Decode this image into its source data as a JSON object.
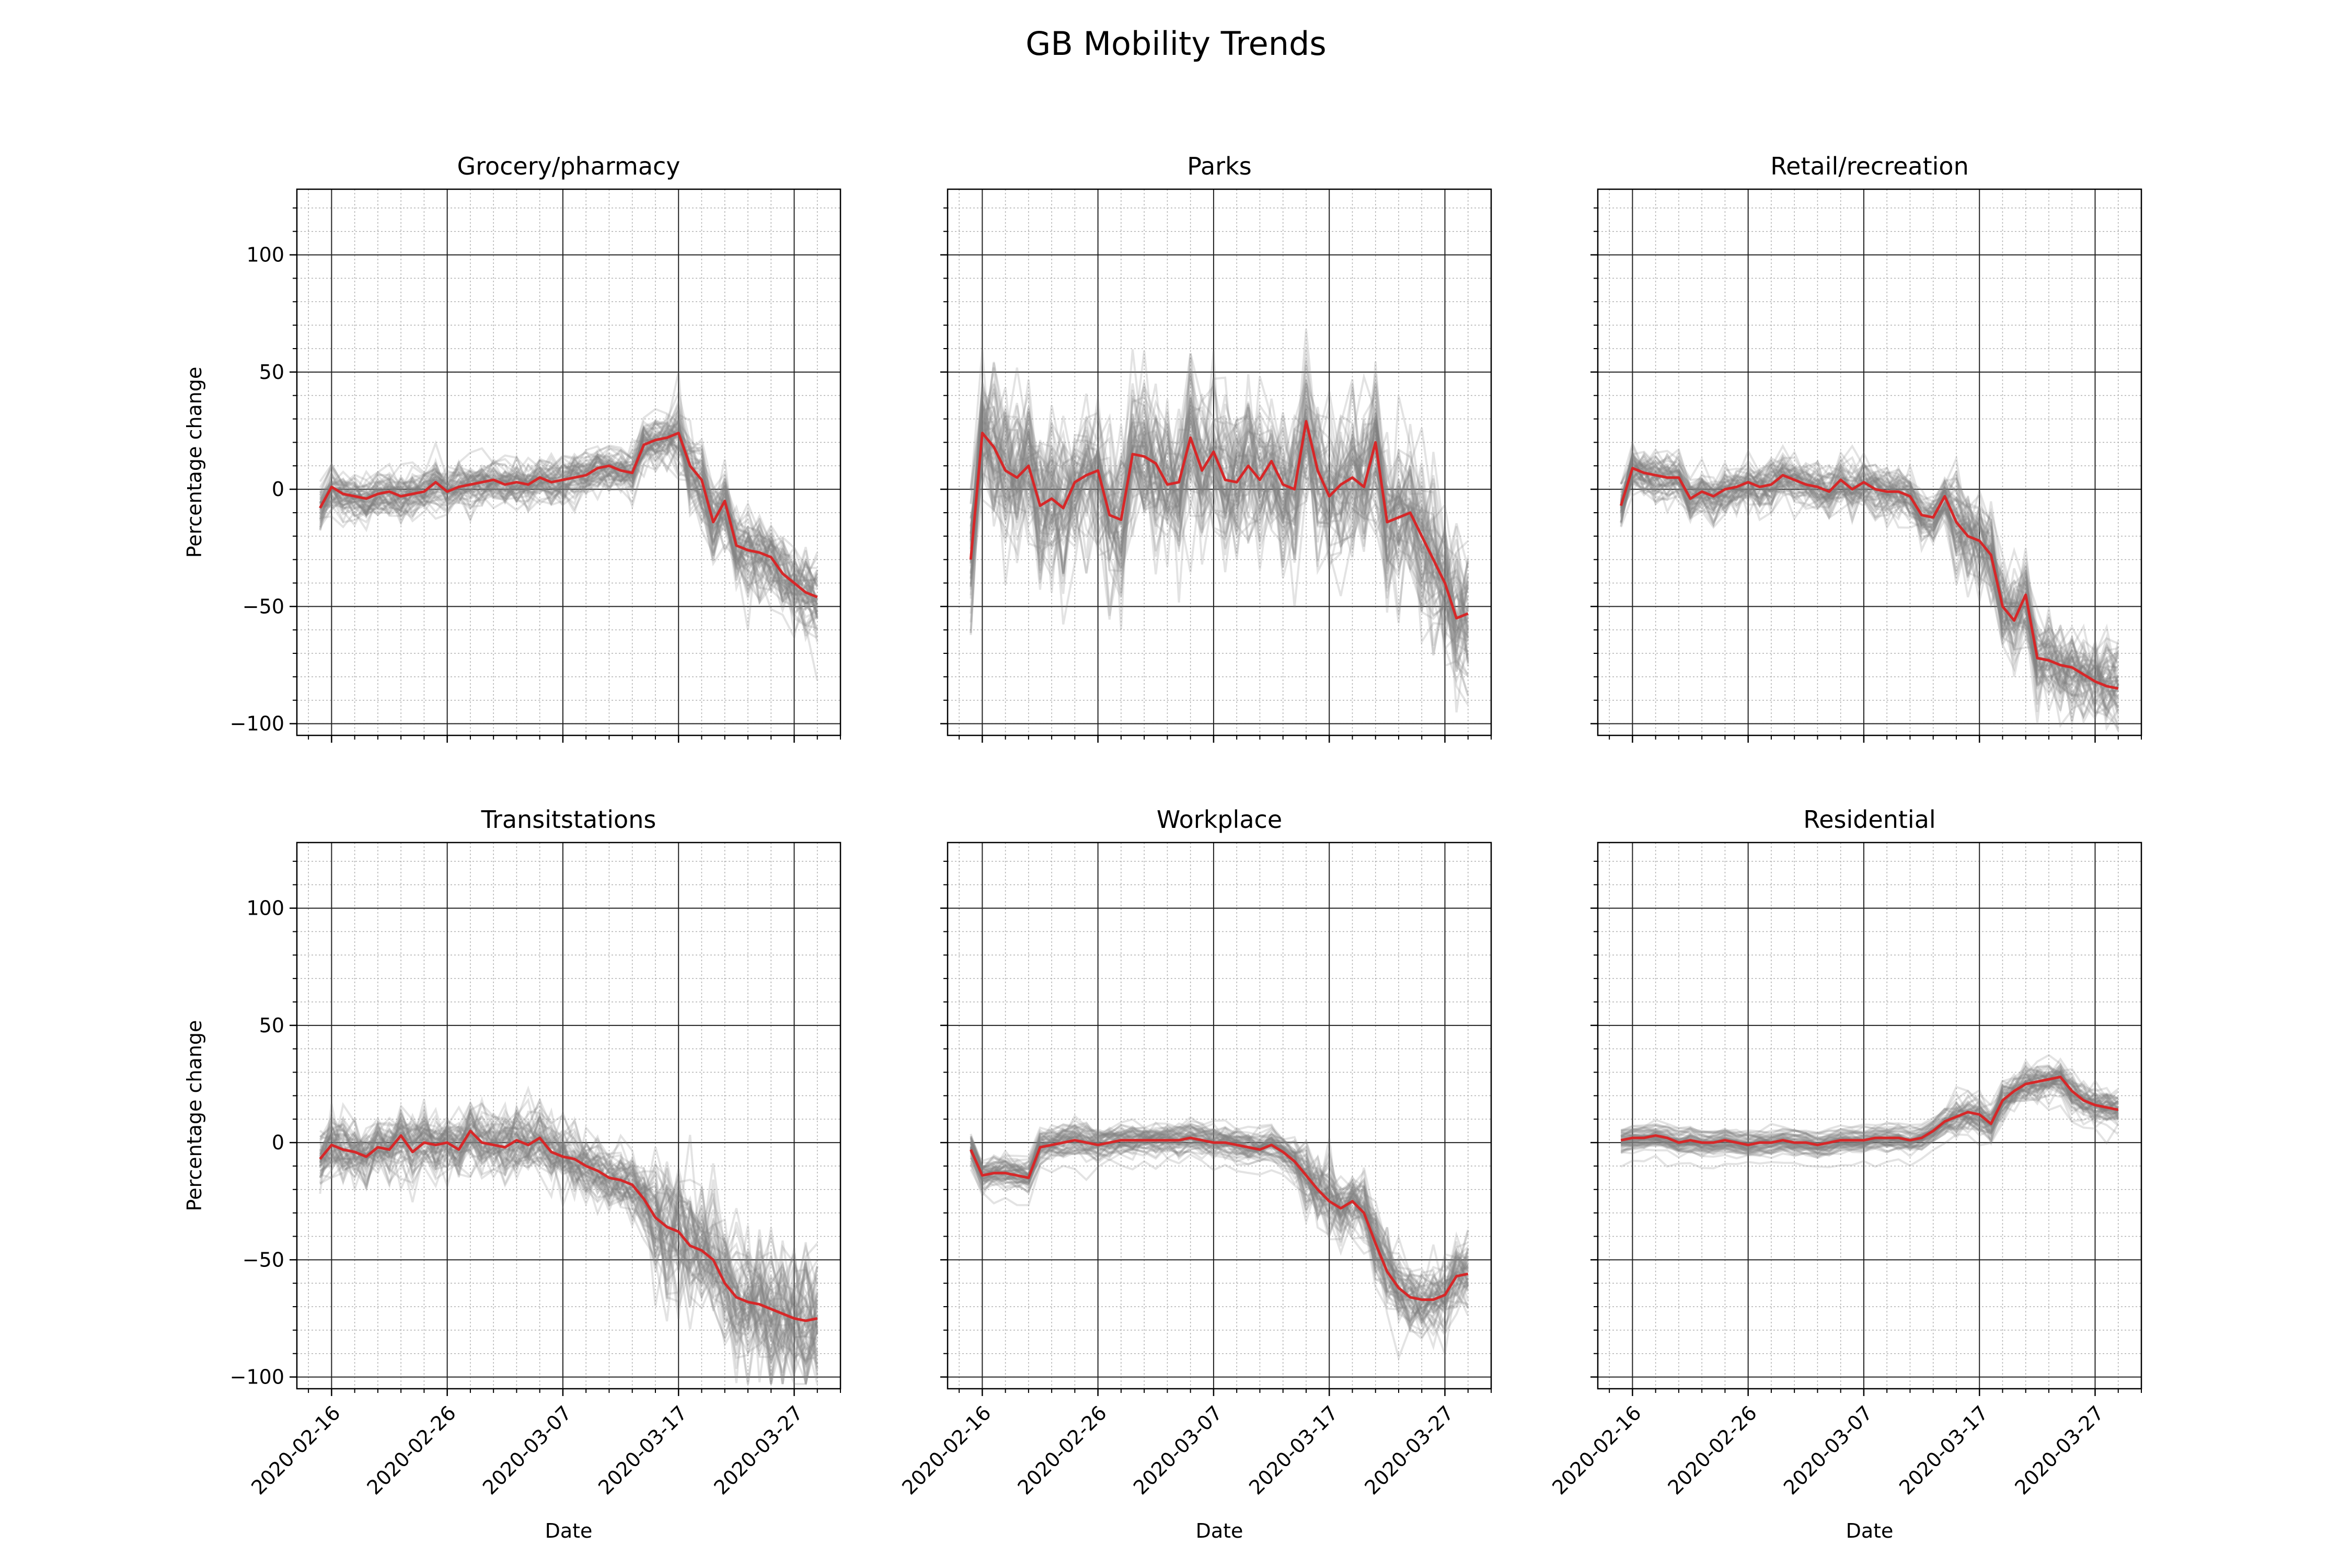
{
  "figure": {
    "title": "GB Mobility Trends"
  },
  "chart_data": [
    {
      "type": "line",
      "title": "Grocery/pharmacy",
      "xlabel": "",
      "ylabel": "Percentage change",
      "xlim": [
        "2020-02-13",
        "2020-03-31"
      ],
      "ylim": [
        -105,
        128
      ],
      "x_tick_labels": [],
      "y_ticks": [
        -100,
        -50,
        0,
        50,
        100
      ],
      "grid": {
        "major": true,
        "minor": true
      },
      "series": [
        {
          "color": "#d62728",
          "x": [
            "2020-02-15",
            "2020-02-16",
            "2020-02-17",
            "2020-02-18",
            "2020-02-19",
            "2020-02-20",
            "2020-02-21",
            "2020-02-22",
            "2020-02-23",
            "2020-02-24",
            "2020-02-25",
            "2020-02-26",
            "2020-02-27",
            "2020-02-28",
            "2020-02-29",
            "2020-03-01",
            "2020-03-02",
            "2020-03-03",
            "2020-03-04",
            "2020-03-05",
            "2020-03-06",
            "2020-03-07",
            "2020-03-08",
            "2020-03-09",
            "2020-03-10",
            "2020-03-11",
            "2020-03-12",
            "2020-03-13",
            "2020-03-14",
            "2020-03-15",
            "2020-03-16",
            "2020-03-17",
            "2020-03-18",
            "2020-03-19",
            "2020-03-20",
            "2020-03-21",
            "2020-03-22",
            "2020-03-23",
            "2020-03-24",
            "2020-03-25",
            "2020-03-26",
            "2020-03-27",
            "2020-03-28",
            "2020-03-29"
          ],
          "y": [
            -8,
            1,
            -2,
            -3,
            -4,
            -2,
            -1,
            -3,
            -2,
            -1,
            3,
            -1,
            1,
            2,
            3,
            4,
            2,
            3,
            2,
            5,
            3,
            4,
            5,
            6,
            9,
            10,
            8,
            7,
            19,
            21,
            22,
            24,
            10,
            4,
            -14,
            -5,
            -24,
            -26,
            -27,
            -29,
            -36,
            -40,
            -44,
            -46
          ]
        }
      ],
      "background_series": {
        "color": "#808080",
        "description_count": 60
      }
    },
    {
      "type": "line",
      "title": "Parks",
      "xlabel": "",
      "ylabel": "",
      "xlim": [
        "2020-02-13",
        "2020-03-31"
      ],
      "ylim": [
        -105,
        128
      ],
      "x_tick_labels": [],
      "y_ticks": [
        -100,
        -50,
        0,
        50,
        100
      ],
      "grid": {
        "major": true,
        "minor": true
      },
      "series": [
        {
          "color": "#d62728",
          "x": [
            "2020-02-15",
            "2020-02-16",
            "2020-02-17",
            "2020-02-18",
            "2020-02-19",
            "2020-02-20",
            "2020-02-21",
            "2020-02-22",
            "2020-02-23",
            "2020-02-24",
            "2020-02-25",
            "2020-02-26",
            "2020-02-27",
            "2020-02-28",
            "2020-02-29",
            "2020-03-01",
            "2020-03-02",
            "2020-03-03",
            "2020-03-04",
            "2020-03-05",
            "2020-03-06",
            "2020-03-07",
            "2020-03-08",
            "2020-03-09",
            "2020-03-10",
            "2020-03-11",
            "2020-03-12",
            "2020-03-13",
            "2020-03-14",
            "2020-03-15",
            "2020-03-16",
            "2020-03-17",
            "2020-03-18",
            "2020-03-19",
            "2020-03-20",
            "2020-03-21",
            "2020-03-22",
            "2020-03-23",
            "2020-03-24",
            "2020-03-25",
            "2020-03-26",
            "2020-03-27",
            "2020-03-28",
            "2020-03-29"
          ],
          "y": [
            -30,
            24,
            18,
            8,
            5,
            10,
            -7,
            -4,
            -8,
            3,
            6,
            8,
            -11,
            -13,
            15,
            14,
            11,
            2,
            3,
            22,
            8,
            16,
            4,
            3,
            10,
            4,
            12,
            2,
            0,
            29,
            8,
            -3,
            2,
            5,
            1,
            20,
            -14,
            -12,
            -10,
            -20,
            -30,
            -40,
            -55,
            -53
          ]
        }
      ],
      "background_series": {
        "color": "#808080",
        "description_count": 60
      }
    },
    {
      "type": "line",
      "title": "Retail/recreation",
      "xlabel": "",
      "ylabel": "",
      "xlim": [
        "2020-02-13",
        "2020-03-31"
      ],
      "ylim": [
        -105,
        128
      ],
      "x_tick_labels": [],
      "y_ticks": [
        -100,
        -50,
        0,
        50,
        100
      ],
      "grid": {
        "major": true,
        "minor": true
      },
      "series": [
        {
          "color": "#d62728",
          "x": [
            "2020-02-15",
            "2020-02-16",
            "2020-02-17",
            "2020-02-18",
            "2020-02-19",
            "2020-02-20",
            "2020-02-21",
            "2020-02-22",
            "2020-02-23",
            "2020-02-24",
            "2020-02-25",
            "2020-02-26",
            "2020-02-27",
            "2020-02-28",
            "2020-02-29",
            "2020-03-01",
            "2020-03-02",
            "2020-03-03",
            "2020-03-04",
            "2020-03-05",
            "2020-03-06",
            "2020-03-07",
            "2020-03-08",
            "2020-03-09",
            "2020-03-10",
            "2020-03-11",
            "2020-03-12",
            "2020-03-13",
            "2020-03-14",
            "2020-03-15",
            "2020-03-16",
            "2020-03-17",
            "2020-03-18",
            "2020-03-19",
            "2020-03-20",
            "2020-03-21",
            "2020-03-22",
            "2020-03-23",
            "2020-03-24",
            "2020-03-25",
            "2020-03-26",
            "2020-03-27",
            "2020-03-28",
            "2020-03-29"
          ],
          "y": [
            -7,
            9,
            7,
            6,
            5,
            5,
            -4,
            -1,
            -3,
            0,
            1,
            3,
            1,
            2,
            6,
            4,
            2,
            1,
            -1,
            4,
            0,
            3,
            0,
            -1,
            -1,
            -3,
            -11,
            -12,
            -3,
            -14,
            -20,
            -22,
            -28,
            -50,
            -56,
            -45,
            -72,
            -73,
            -75,
            -76,
            -79,
            -82,
            -84,
            -85
          ]
        }
      ],
      "background_series": {
        "color": "#808080",
        "description_count": 60
      }
    },
    {
      "type": "line",
      "title": "Transitstations",
      "xlabel": "Date",
      "ylabel": "Percentage change",
      "xlim": [
        "2020-02-13",
        "2020-03-31"
      ],
      "ylim": [
        -105,
        128
      ],
      "x_tick_labels": [
        "2020-02-16",
        "2020-02-26",
        "2020-03-07",
        "2020-03-17",
        "2020-03-27"
      ],
      "y_ticks": [
        -100,
        -50,
        0,
        50,
        100
      ],
      "grid": {
        "major": true,
        "minor": true
      },
      "series": [
        {
          "color": "#d62728",
          "x": [
            "2020-02-15",
            "2020-02-16",
            "2020-02-17",
            "2020-02-18",
            "2020-02-19",
            "2020-02-20",
            "2020-02-21",
            "2020-02-22",
            "2020-02-23",
            "2020-02-24",
            "2020-02-25",
            "2020-02-26",
            "2020-02-27",
            "2020-02-28",
            "2020-02-29",
            "2020-03-01",
            "2020-03-02",
            "2020-03-03",
            "2020-03-04",
            "2020-03-05",
            "2020-03-06",
            "2020-03-07",
            "2020-03-08",
            "2020-03-09",
            "2020-03-10",
            "2020-03-11",
            "2020-03-12",
            "2020-03-13",
            "2020-03-14",
            "2020-03-15",
            "2020-03-16",
            "2020-03-17",
            "2020-03-18",
            "2020-03-19",
            "2020-03-20",
            "2020-03-21",
            "2020-03-22",
            "2020-03-23",
            "2020-03-24",
            "2020-03-25",
            "2020-03-26",
            "2020-03-27",
            "2020-03-28",
            "2020-03-29"
          ],
          "y": [
            -7,
            -1,
            -3,
            -4,
            -6,
            -2,
            -3,
            3,
            -4,
            0,
            -1,
            0,
            -3,
            5,
            0,
            -1,
            -2,
            1,
            -1,
            2,
            -4,
            -6,
            -7,
            -10,
            -12,
            -15,
            -16,
            -18,
            -24,
            -32,
            -36,
            -38,
            -44,
            -46,
            -50,
            -60,
            -66,
            -68,
            -69,
            -71,
            -73,
            -75,
            -76,
            -75
          ]
        }
      ],
      "background_series": {
        "color": "#808080",
        "description_count": 60
      }
    },
    {
      "type": "line",
      "title": "Workplace",
      "xlabel": "Date",
      "ylabel": "",
      "xlim": [
        "2020-02-13",
        "2020-03-31"
      ],
      "ylim": [
        -105,
        128
      ],
      "x_tick_labels": [
        "2020-02-16",
        "2020-02-26",
        "2020-03-07",
        "2020-03-17",
        "2020-03-27"
      ],
      "y_ticks": [
        -100,
        -50,
        0,
        50,
        100
      ],
      "grid": {
        "major": true,
        "minor": true
      },
      "series": [
        {
          "color": "#d62728",
          "x": [
            "2020-02-15",
            "2020-02-16",
            "2020-02-17",
            "2020-02-18",
            "2020-02-19",
            "2020-02-20",
            "2020-02-21",
            "2020-02-22",
            "2020-02-23",
            "2020-02-24",
            "2020-02-25",
            "2020-02-26",
            "2020-02-27",
            "2020-02-28",
            "2020-02-29",
            "2020-03-01",
            "2020-03-02",
            "2020-03-03",
            "2020-03-04",
            "2020-03-05",
            "2020-03-06",
            "2020-03-07",
            "2020-03-08",
            "2020-03-09",
            "2020-03-10",
            "2020-03-11",
            "2020-03-12",
            "2020-03-13",
            "2020-03-14",
            "2020-03-15",
            "2020-03-16",
            "2020-03-17",
            "2020-03-18",
            "2020-03-19",
            "2020-03-20",
            "2020-03-21",
            "2020-03-22",
            "2020-03-23",
            "2020-03-24",
            "2020-03-25",
            "2020-03-26",
            "2020-03-27",
            "2020-03-28",
            "2020-03-29"
          ],
          "y": [
            -3,
            -14,
            -13,
            -13,
            -14,
            -15,
            -2,
            -1,
            0,
            1,
            0,
            -1,
            0,
            1,
            1,
            1,
            1,
            1,
            1,
            2,
            1,
            0,
            0,
            -1,
            -2,
            -3,
            -1,
            -4,
            -8,
            -14,
            -20,
            -25,
            -28,
            -25,
            -30,
            -43,
            -55,
            -62,
            -66,
            -67,
            -67,
            -65,
            -57,
            -56
          ]
        }
      ],
      "background_series": {
        "color": "#808080",
        "description_count": 60
      }
    },
    {
      "type": "line",
      "title": "Residential",
      "xlabel": "Date",
      "ylabel": "",
      "xlim": [
        "2020-02-13",
        "2020-03-31"
      ],
      "ylim": [
        -105,
        128
      ],
      "x_tick_labels": [
        "2020-02-16",
        "2020-02-26",
        "2020-03-07",
        "2020-03-17",
        "2020-03-27"
      ],
      "y_ticks": [
        -100,
        -50,
        0,
        50,
        100
      ],
      "grid": {
        "major": true,
        "minor": true
      },
      "series": [
        {
          "color": "#d62728",
          "x": [
            "2020-02-15",
            "2020-02-16",
            "2020-02-17",
            "2020-02-18",
            "2020-02-19",
            "2020-02-20",
            "2020-02-21",
            "2020-02-22",
            "2020-02-23",
            "2020-02-24",
            "2020-02-25",
            "2020-02-26",
            "2020-02-27",
            "2020-02-28",
            "2020-02-29",
            "2020-03-01",
            "2020-03-02",
            "2020-03-03",
            "2020-03-04",
            "2020-03-05",
            "2020-03-06",
            "2020-03-07",
            "2020-03-08",
            "2020-03-09",
            "2020-03-10",
            "2020-03-11",
            "2020-03-12",
            "2020-03-13",
            "2020-03-14",
            "2020-03-15",
            "2020-03-16",
            "2020-03-17",
            "2020-03-18",
            "2020-03-19",
            "2020-03-20",
            "2020-03-21",
            "2020-03-22",
            "2020-03-23",
            "2020-03-24",
            "2020-03-25",
            "2020-03-26",
            "2020-03-27",
            "2020-03-28",
            "2020-03-29"
          ],
          "y": [
            1,
            2,
            2,
            3,
            2,
            0,
            1,
            0,
            0,
            1,
            0,
            -1,
            0,
            0,
            1,
            0,
            0,
            -1,
            0,
            1,
            1,
            1,
            2,
            2,
            2,
            1,
            2,
            5,
            9,
            11,
            13,
            12,
            8,
            18,
            22,
            25,
            26,
            27,
            28,
            22,
            18,
            16,
            15,
            14
          ]
        }
      ],
      "background_series": {
        "color": "#808080",
        "description_count": 60
      }
    }
  ]
}
